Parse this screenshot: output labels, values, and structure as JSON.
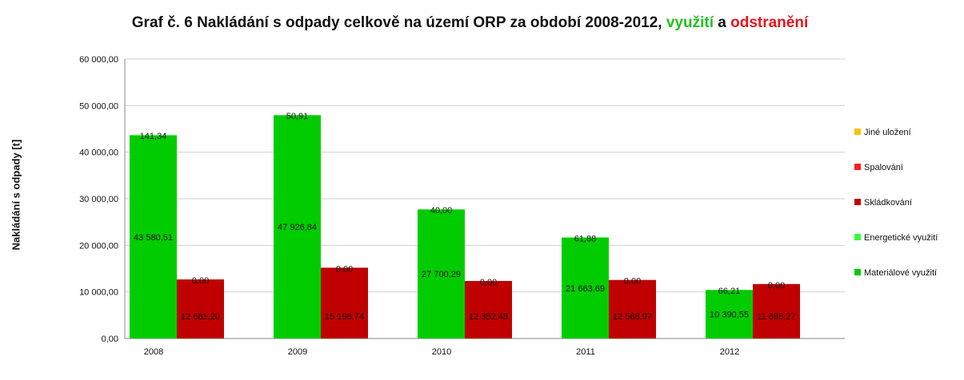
{
  "title": {
    "main": "Graf č. 6 Nakládání s odpady celkově na území ORP za období 2008-2012,",
    "word_green": "využití",
    "connector": "a",
    "word_red": "odstranění"
  },
  "colors": {
    "materialove": "#00cc00",
    "energeticke": "#33ff33",
    "skladkovani": "#c00000",
    "spalovani": "#ff2020",
    "jine": "#ffc000"
  },
  "chart_data": {
    "type": "bar",
    "stacked": true,
    "categories": [
      "2008",
      "2009",
      "2010",
      "2011",
      "2012"
    ],
    "ylabel": "Nakládání s odpady [t]",
    "ylim": [
      0,
      60000
    ],
    "yticks": [
      "0,00",
      "10 000,00",
      "20 000,00",
      "30 000,00",
      "40 000,00",
      "50 000,00",
      "60 000,00"
    ],
    "grid": true,
    "legend_position": "right",
    "legend": [
      "Jiné uložení",
      "Spalování",
      "Skládkování",
      "Energetické využití",
      "Materiálové využití"
    ],
    "stacks": [
      {
        "name": "využití",
        "series": [
          {
            "name": "Materiálové využití",
            "values": [
              43580.51,
              47926.84,
              27700.29,
              21663.69,
              10390.55
            ],
            "labels": [
              "43 580,51",
              "47 926,84",
              "27 700,29",
              "21 663,69",
              "10 390,55"
            ]
          },
          {
            "name": "Energetické využití",
            "values": [
              141.34,
              50.91,
              40.0,
              61.88,
              66.21
            ],
            "labels": [
              "141,34",
              "50,91",
              "40,00",
              "61,88",
              "66,21"
            ]
          }
        ]
      },
      {
        "name": "odstranění",
        "series": [
          {
            "name": "Skládkování",
            "values": [
              12681.2,
              15198.74,
              12352.48,
              12568.97,
              11695.27
            ],
            "labels": [
              "12 681,20",
              "15 198,74",
              "12 352,48",
              "12 568,97",
              "11 695,27"
            ]
          },
          {
            "name": "Spalování",
            "values": [
              0,
              0,
              0,
              0,
              0
            ],
            "labels": [
              "0,00",
              "0,00",
              "0,00",
              "0,00",
              "0,00"
            ]
          }
        ]
      }
    ]
  }
}
